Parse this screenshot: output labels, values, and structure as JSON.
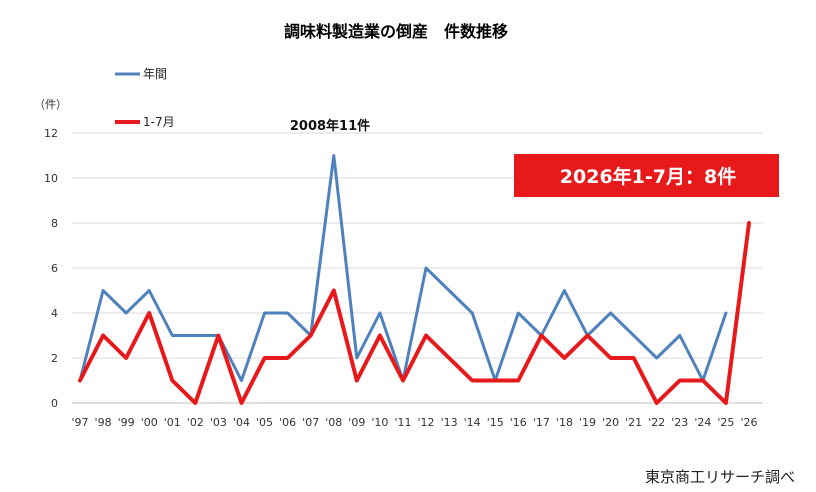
{
  "chart_data": {
    "type": "line",
    "title": "調味料製造業の倒産　件数推移",
    "ylabel": "（件）",
    "ylim": [
      0,
      12
    ],
    "yticks": [
      0,
      2,
      4,
      6,
      8,
      10,
      12
    ],
    "grid": true,
    "legend_position": "top-left",
    "categories": [
      "'97",
      "'98",
      "'99",
      "'00",
      "'01",
      "'02",
      "'03",
      "'04",
      "'05",
      "'06",
      "'07",
      "'08",
      "'09",
      "'10",
      "'11",
      "'12",
      "'13",
      "'14",
      "'15",
      "'16",
      "'17",
      "'18",
      "'19",
      "'20",
      "'21",
      "'22",
      "'23",
      "'24",
      "'25",
      "'26"
    ],
    "series": [
      {
        "name": "年間",
        "color": "#4f81bd",
        "values": [
          1,
          5,
          4,
          5,
          3,
          3,
          3,
          1,
          4,
          4,
          3,
          11,
          2,
          4,
          1,
          6,
          5,
          4,
          1,
          4,
          3,
          5,
          3,
          4,
          3,
          2,
          3,
          1,
          4,
          null
        ]
      },
      {
        "name": "1-7月",
        "color": "#e8191b",
        "values": [
          1,
          3,
          2,
          4,
          1,
          0,
          3,
          0,
          2,
          2,
          3,
          5,
          1,
          3,
          1,
          3,
          2,
          1,
          1,
          1,
          3,
          2,
          3,
          2,
          2,
          0,
          1,
          1,
          0,
          8
        ]
      }
    ],
    "annotations": [
      {
        "text": "2008年11件"
      }
    ],
    "callout": {
      "text": "2026年1-7月：8件",
      "color": "#e8191b"
    },
    "source": "東京商工リサーチ調べ"
  }
}
